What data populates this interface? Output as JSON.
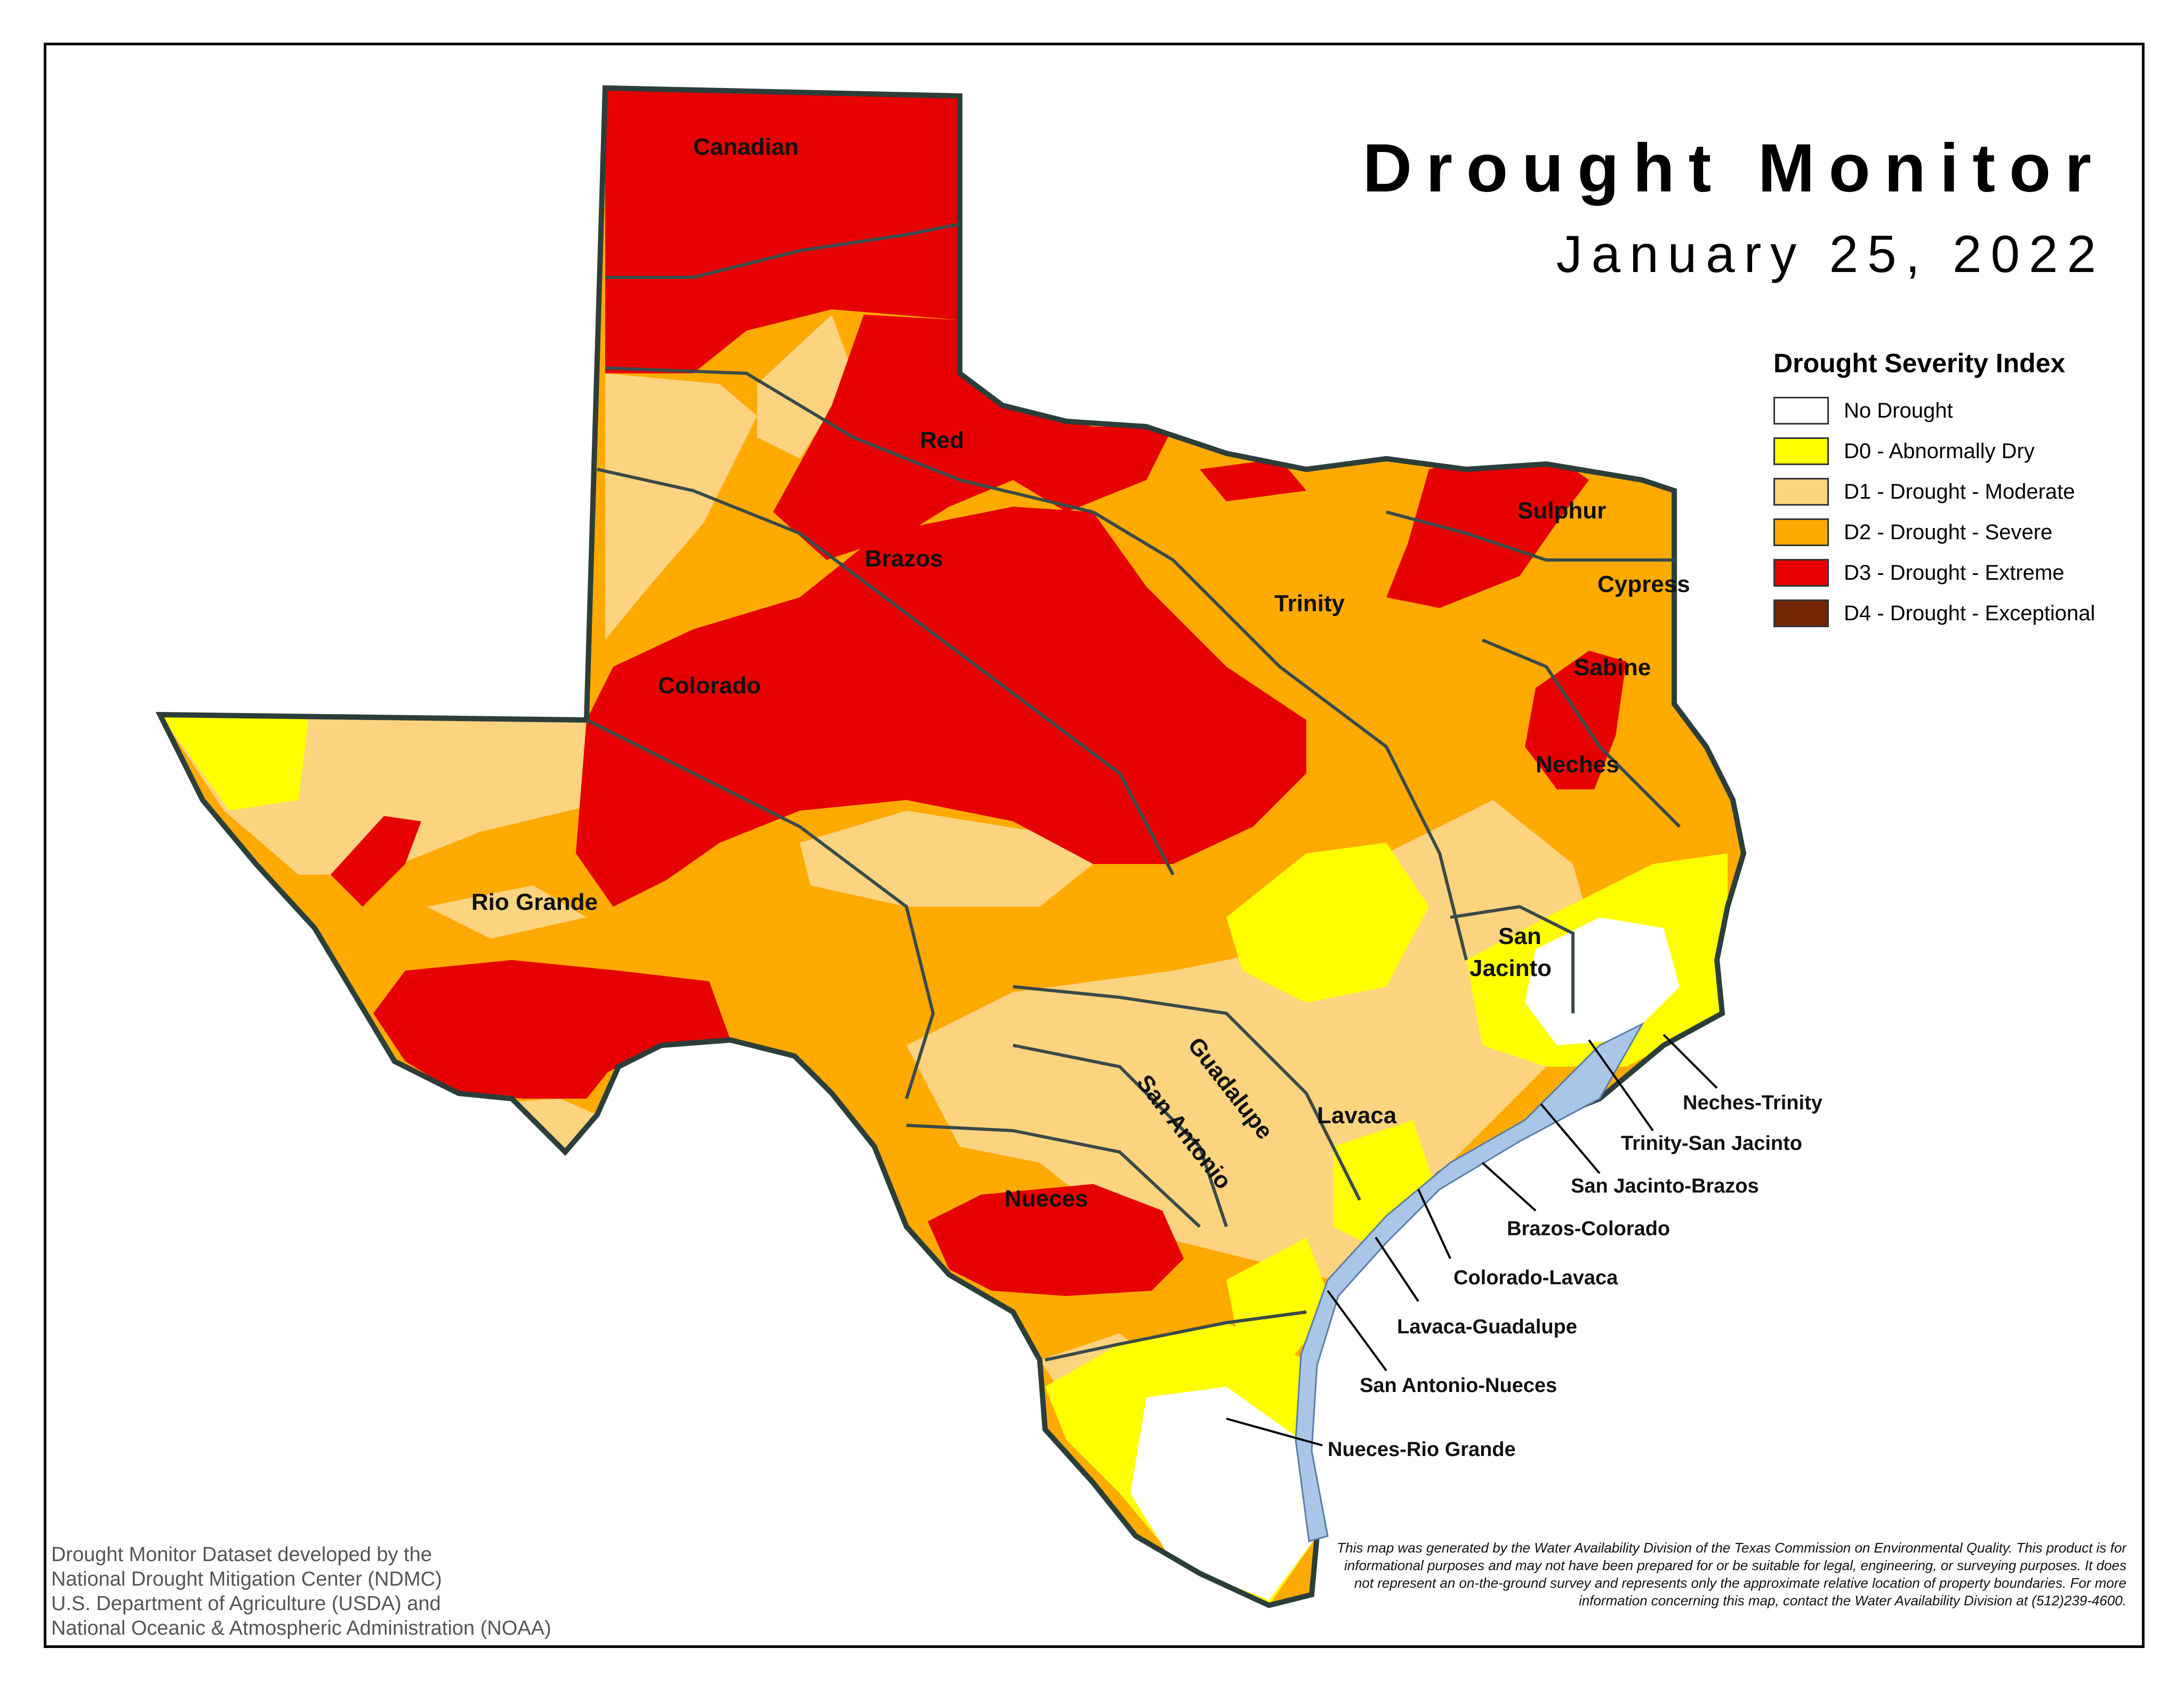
{
  "header": {
    "title": "Drought Monitor",
    "date": "January 25, 2022"
  },
  "legend": {
    "title": "Drought Severity Index",
    "items": [
      {
        "label": "No Drought",
        "color": "#ffffff"
      },
      {
        "label": "D0 - Abnormally Dry",
        "color": "#ffff00"
      },
      {
        "label": "D1 - Drought - Moderate",
        "color": "#fcd37f"
      },
      {
        "label": "D2 - Drought - Severe",
        "color": "#ffaa00"
      },
      {
        "label": "D3 - Drought - Extreme",
        "color": "#e60000"
      },
      {
        "label": "D4 - Drought - Exceptional",
        "color": "#732600"
      }
    ]
  },
  "basins": {
    "canadian": "Canadian",
    "red": "Red",
    "brazos": "Brazos",
    "colorado": "Colorado",
    "rio_grande": "Rio Grande",
    "trinity": "Trinity",
    "sulphur": "Sulphur",
    "cypress": "Cypress",
    "sabine": "Sabine",
    "neches": "Neches",
    "san_jacinto_1": "San",
    "san_jacinto_2": "Jacinto",
    "guadalupe": "Guadalupe",
    "san_antonio": "San Antonio",
    "lavaca": "Lavaca",
    "nueces": "Nueces"
  },
  "coastal_basins": {
    "neches_trinity": "Neches-Trinity",
    "trinity_san_jacinto": "Trinity-San Jacinto",
    "san_jacinto_brazos": "San Jacinto-Brazos",
    "brazos_colorado": "Brazos-Colorado",
    "colorado_lavaca": "Colorado-Lavaca",
    "lavaca_guadalupe": "Lavaca-Guadalupe",
    "san_antonio_nueces": "San Antonio-Nueces",
    "nueces_rio_grande": "Nueces-Rio Grande"
  },
  "credits": {
    "line1": "Drought Monitor Dataset developed by the",
    "line2": "National Drought Mitigation Center (NDMC)",
    "line3": "U.S. Department of Agriculture (USDA) and",
    "line4": "National Oceanic & Atmospheric Administration (NOAA)"
  },
  "disclaimer": "This map was generated by the Water Availability Division of the Texas Commission on Environmental Quality. This product is for informational purposes and may not have been prepared for or be suitable for legal, engineering, or surveying purposes. It does not represent an on-the-ground survey and represents only the approximate relative location of property boundaries. For more information concerning this map, contact the Water Availability Division at (512)239-4600."
}
